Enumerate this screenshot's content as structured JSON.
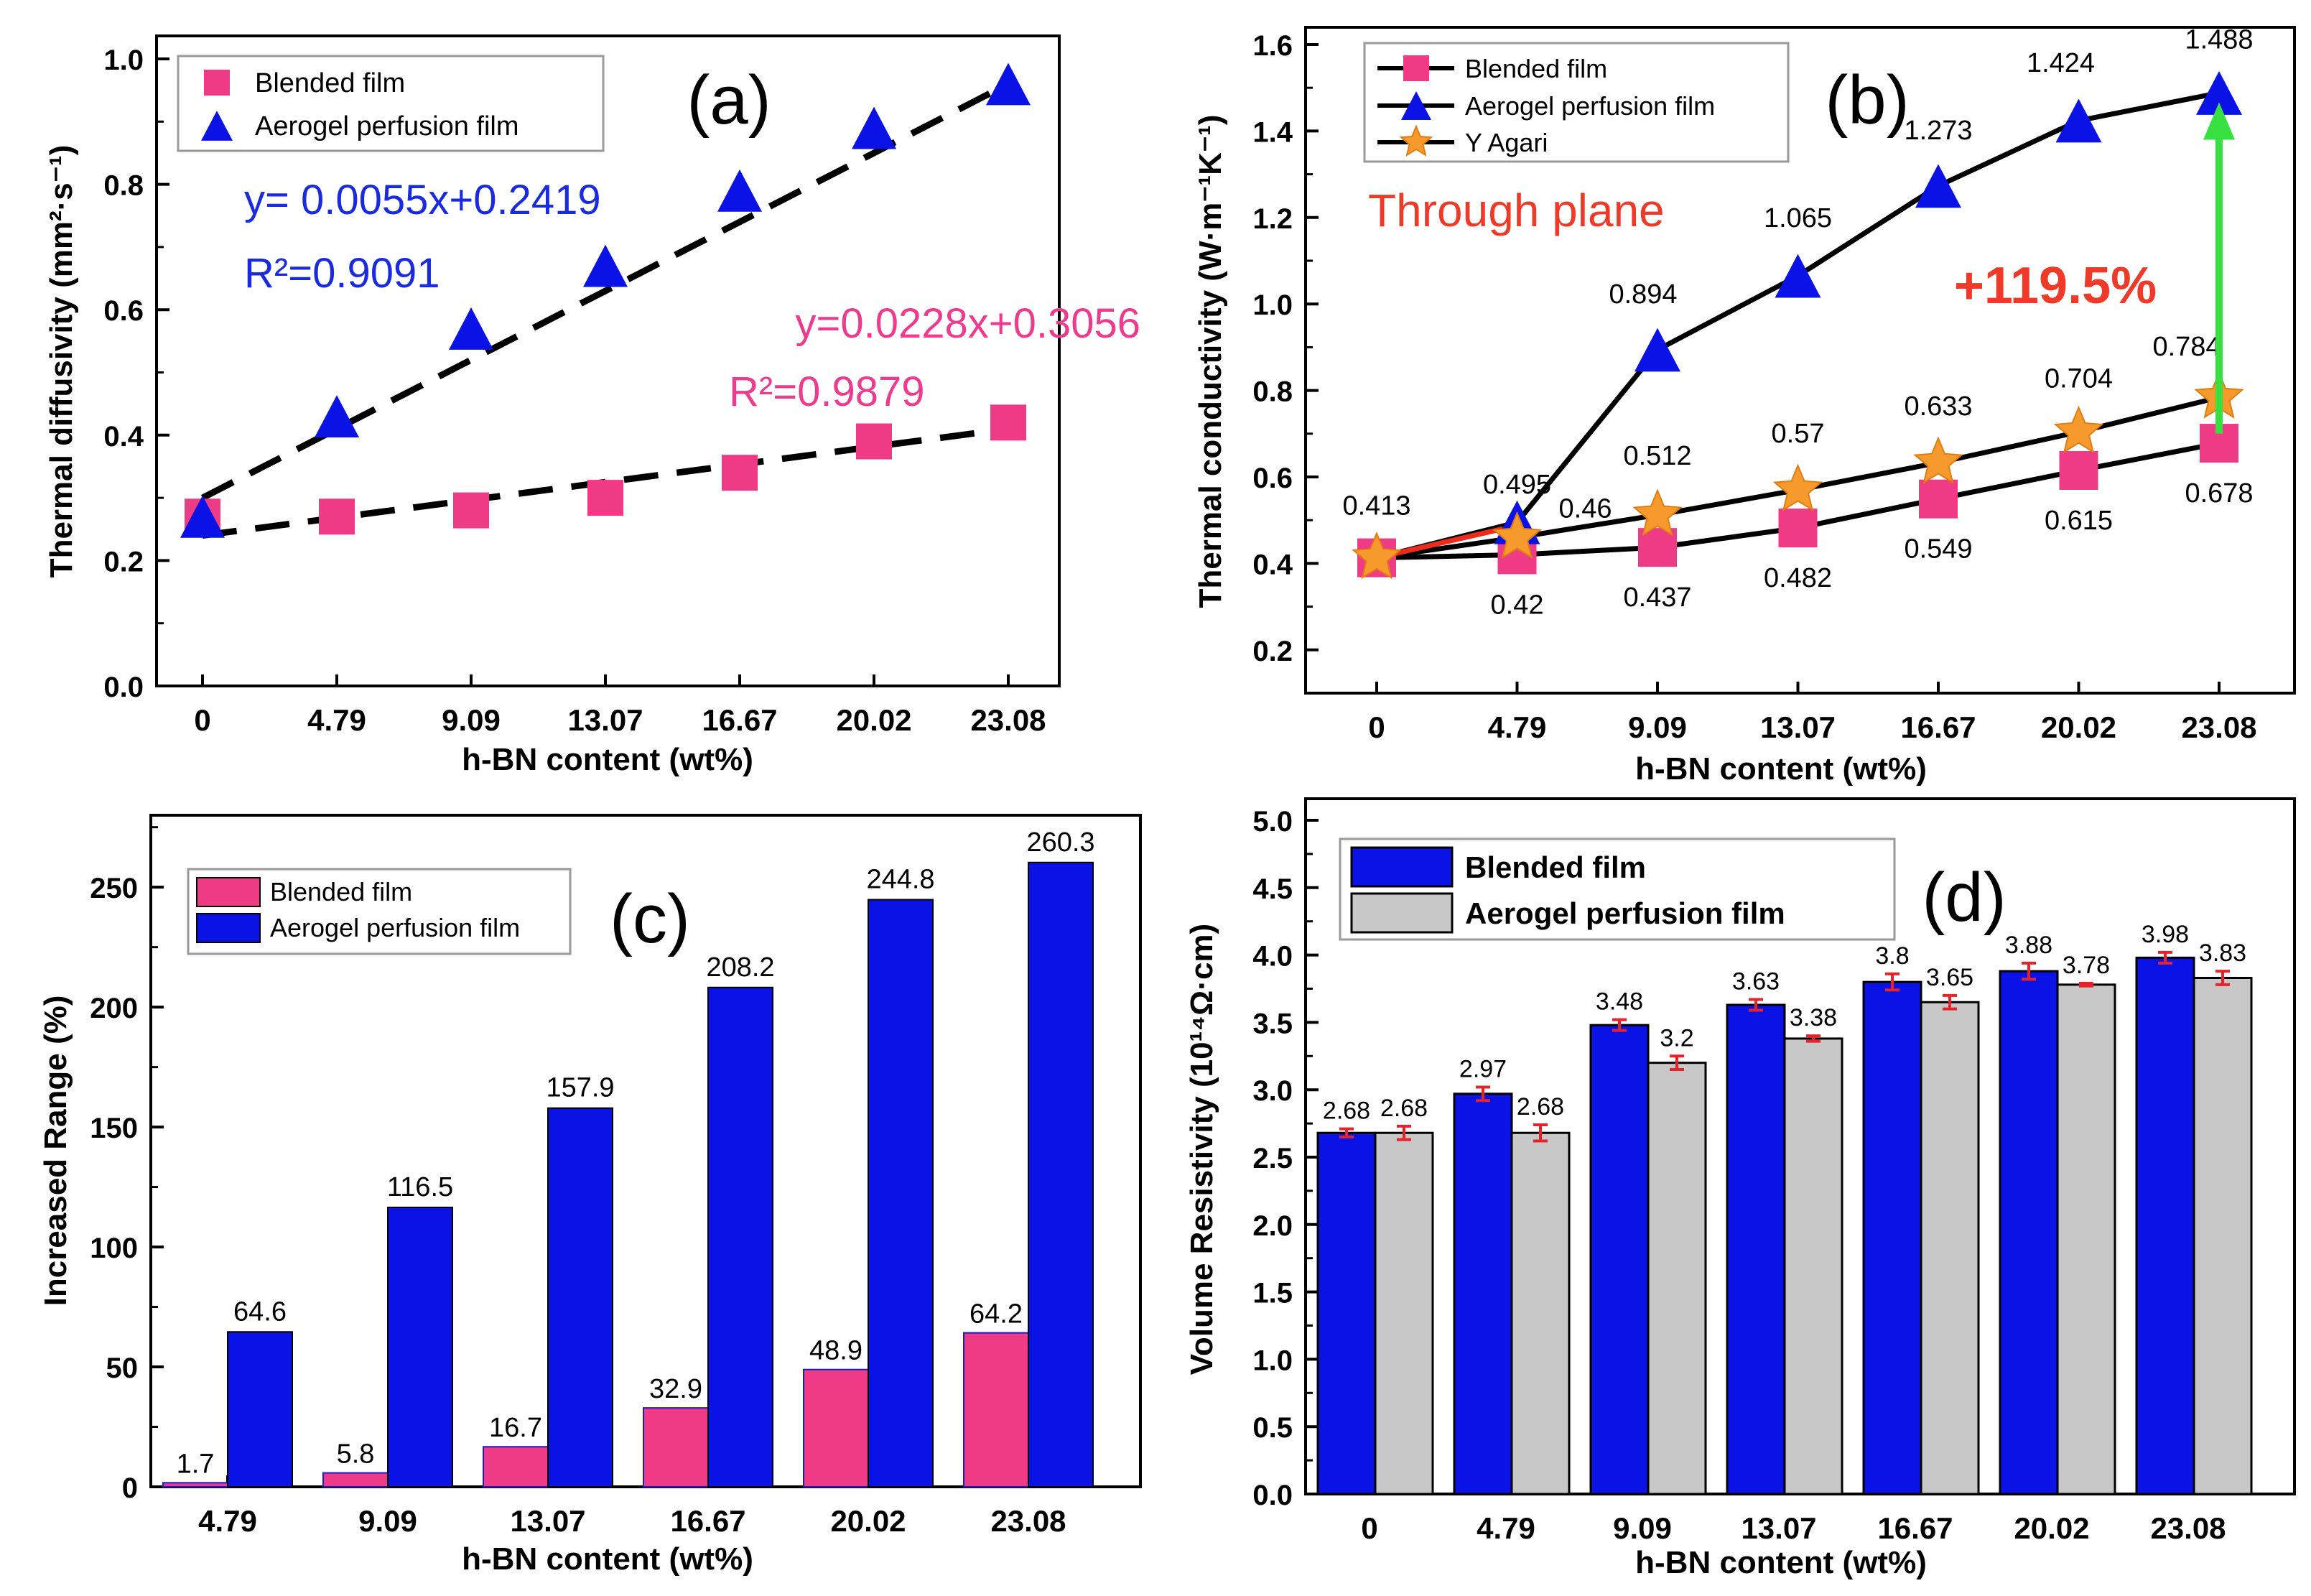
{
  "colors": {
    "pink": "#ef3b86",
    "blue": "#0b12e6",
    "orange": "#f79a2e",
    "gray": "#c8c8c8",
    "fit_blue": "#1a2ae0",
    "fit_pink": "#ee3b8e",
    "red_text": "#ef3a2a",
    "arrow_green": "#36e040",
    "axis": "#000000",
    "errbar": "#e8222a"
  },
  "chart_data": [
    {
      "panel": "a",
      "type": "scatter",
      "panel_label": "(a)",
      "xlabel": "h-BN content (wt%)",
      "ylabel": "Thermal diffusivity (mm²·s⁻¹)",
      "categories": [
        "0",
        "4.79",
        "9.09",
        "13.07",
        "16.67",
        "20.02",
        "23.08"
      ],
      "yticks": [
        "0.0",
        "0.2",
        "0.4",
        "0.6",
        "0.8",
        "1.0"
      ],
      "ylim": [
        0,
        1.0
      ],
      "legend": [
        "Blended film",
        "Aerogel perfusion film"
      ],
      "series": [
        {
          "name": "Blended film",
          "marker": "square",
          "values": [
            0.27,
            0.27,
            0.28,
            0.3,
            0.34,
            0.39,
            0.42
          ]
        },
        {
          "name": "Aerogel perfusion film",
          "marker": "triangle",
          "values": [
            0.27,
            0.43,
            0.57,
            0.67,
            0.79,
            0.89,
            0.96
          ]
        }
      ],
      "fits": {
        "blue_eq": "y= 0.0055x+0.2419",
        "blue_r2": "R²=0.9091",
        "pink_eq": "y=0.0228x+0.3056",
        "pink_r2": "R²=0.9879",
        "blue_line": [
          0.3,
          0.96
        ],
        "pink_line": [
          0.24,
          0.41
        ]
      }
    },
    {
      "panel": "b",
      "type": "line",
      "panel_label": "(b)",
      "xlabel": "h-BN content (wt%)",
      "ylabel": "Thermal conductivity (W·m⁻¹K⁻¹)",
      "categories": [
        "0",
        "4.79",
        "9.09",
        "13.07",
        "16.67",
        "20.02",
        "23.08"
      ],
      "yticks": [
        "0.2",
        "0.4",
        "0.6",
        "0.8",
        "1.0",
        "1.2",
        "1.4",
        "1.6"
      ],
      "ylim": [
        0.1,
        1.6
      ],
      "legend": [
        "Blended film",
        "Aerogel perfusion film",
        "Y Agari"
      ],
      "series": [
        {
          "name": "Blended film",
          "marker": "square",
          "values": [
            0.413,
            0.42,
            0.437,
            0.482,
            0.549,
            0.615,
            0.678
          ],
          "labels": [
            "0.413",
            "0.42",
            "0.437",
            "0.482",
            "0.549",
            "0.615",
            "0.678"
          ]
        },
        {
          "name": "Aerogel perfusion film",
          "marker": "triangle",
          "values": [
            0.413,
            0.495,
            0.894,
            1.065,
            1.273,
            1.424,
            1.488
          ],
          "labels": [
            "",
            "0.495",
            "0.894",
            "1.065",
            "1.273",
            "1.424",
            "1.488"
          ]
        },
        {
          "name": "Y Agari",
          "marker": "star",
          "values": [
            0.413,
            0.46,
            0.512,
            0.57,
            0.633,
            0.704,
            0.784
          ],
          "labels": [
            "",
            "0.46",
            "0.512",
            "0.57",
            "0.633",
            "0.704",
            "0.784"
          ]
        }
      ],
      "annotation_plane": "Through plane",
      "annotation_increase": "+119.5%"
    },
    {
      "panel": "c",
      "type": "bar",
      "panel_label": "(c)",
      "xlabel": "h-BN content (wt%)",
      "ylabel": "Increased Range (%)",
      "categories": [
        "4.79",
        "9.09",
        "13.07",
        "16.67",
        "20.02",
        "23.08"
      ],
      "yticks": [
        "0",
        "50",
        "100",
        "150",
        "200",
        "250"
      ],
      "ylim": [
        0,
        280
      ],
      "legend": [
        "Blended film",
        "Aerogel perfusion film"
      ],
      "series": [
        {
          "name": "Blended film",
          "values": [
            1.7,
            5.8,
            16.7,
            32.9,
            48.9,
            64.2
          ],
          "labels": [
            "1.7",
            "5.8",
            "16.7",
            "32.9",
            "48.9",
            "64.2"
          ]
        },
        {
          "name": "Aerogel perfusion film",
          "values": [
            64.6,
            116.5,
            157.9,
            208.2,
            244.8,
            260.3
          ],
          "labels": [
            "64.6",
            "116.5",
            "157.9",
            "208.2",
            "244.8",
            "260.3"
          ]
        }
      ]
    },
    {
      "panel": "d",
      "type": "bar",
      "panel_label": "(d)",
      "xlabel": "h-BN content (wt%)",
      "ylabel": "Volume Resistivity (10¹⁴Ω·cm)",
      "categories": [
        "0",
        "4.79",
        "9.09",
        "13.07",
        "16.67",
        "20.02",
        "23.08"
      ],
      "yticks": [
        "0.0",
        "0.5",
        "1.0",
        "1.5",
        "2.0",
        "2.5",
        "3.0",
        "3.5",
        "4.0",
        "4.5",
        "5.0"
      ],
      "ylim": [
        0,
        5.0
      ],
      "legend": [
        "Blended film",
        "Aerogel perfusion film"
      ],
      "series": [
        {
          "name": "Blended film",
          "values": [
            2.68,
            2.97,
            3.48,
            3.63,
            3.8,
            3.88,
            3.98
          ],
          "labels": [
            "2.68",
            "2.97",
            "3.48",
            "3.63",
            "3.8",
            "3.88",
            "3.98"
          ],
          "errors": [
            0.03,
            0.05,
            0.04,
            0.04,
            0.06,
            0.06,
            0.04
          ]
        },
        {
          "name": "Aerogel perfusion film",
          "values": [
            2.68,
            2.68,
            3.2,
            3.38,
            3.65,
            3.78,
            3.83
          ],
          "labels": [
            "2.68",
            "2.68",
            "3.2",
            "3.38",
            "3.65",
            "3.78",
            "3.83"
          ],
          "errors": [
            0.05,
            0.06,
            0.05,
            0.02,
            0.05,
            0.01,
            0.05
          ]
        }
      ]
    }
  ]
}
